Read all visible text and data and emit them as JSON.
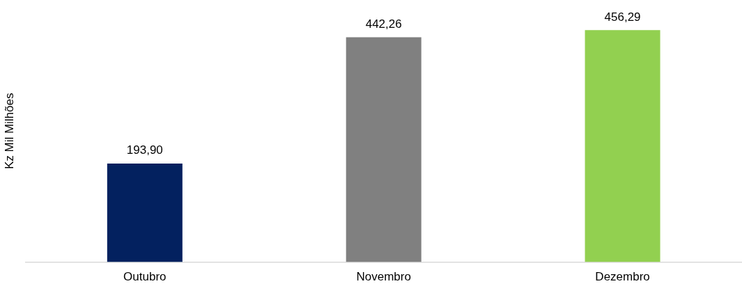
{
  "chart_data": {
    "type": "bar",
    "ylabel": "Kz Mil Milhões",
    "categories": [
      "Outubro",
      "Novembro",
      "Dezembro"
    ],
    "values": [
      193.9,
      442.26,
      456.29
    ],
    "colors": [
      "#03215f",
      "#808080",
      "#92d050"
    ],
    "value_labels": [
      "193,90",
      "442,26",
      "456,29"
    ],
    "grid": false,
    "legend": false
  }
}
